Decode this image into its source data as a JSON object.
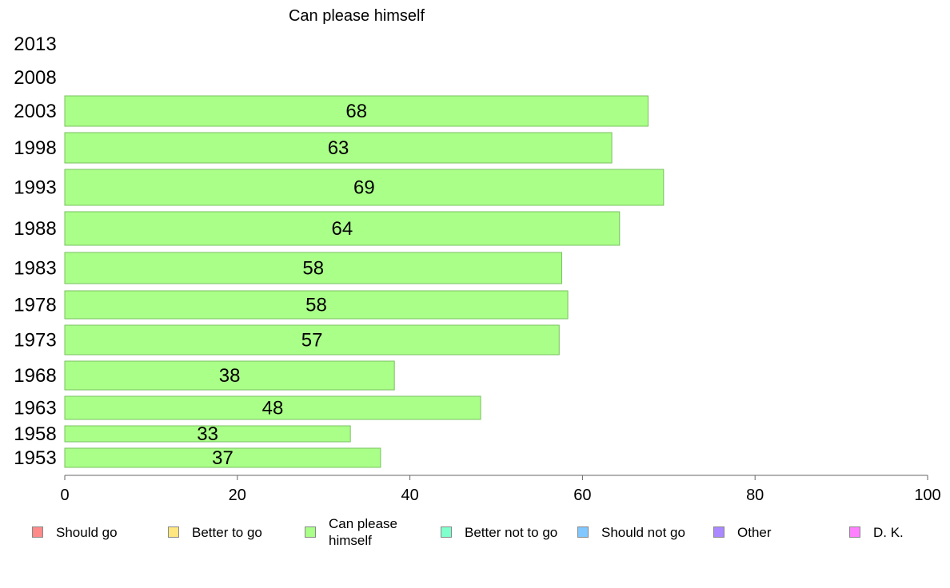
{
  "chart_data": {
    "type": "bar",
    "orientation": "horizontal",
    "title": "Can please himself",
    "categories": [
      "2013",
      "2008",
      "2003",
      "1998",
      "1993",
      "1988",
      "1983",
      "1978",
      "1973",
      "1968",
      "1963",
      "1958",
      "1953"
    ],
    "values": [
      null,
      null,
      68,
      63,
      69,
      64,
      58,
      58,
      57,
      38,
      48,
      33,
      37
    ],
    "bar_lengths": [
      null,
      null,
      67.6,
      63.4,
      69.4,
      64.3,
      57.6,
      58.3,
      57.3,
      38.2,
      48.2,
      33.1,
      36.6
    ],
    "xlim": [
      0,
      100
    ],
    "xticks": [
      0,
      20,
      40,
      60,
      80,
      100
    ],
    "xlabel": "",
    "ylabel": "",
    "grid": false,
    "bar_color": "#aaff88",
    "bar_edge_color": "#78c060",
    "legend_position": "bottom"
  },
  "legend": [
    {
      "label": "Should go",
      "color": "#ff8a8a"
    },
    {
      "label": "Better to go",
      "color": "#ffe680"
    },
    {
      "label": "Can please himself",
      "color": "#aaff88"
    },
    {
      "label": "Better not to go",
      "color": "#80ffcc"
    },
    {
      "label": "Should not go",
      "color": "#80c8ff"
    },
    {
      "label": "Other",
      "color": "#aa88ff"
    },
    {
      "label": "D. K.",
      "color": "#ff80ff"
    }
  ]
}
